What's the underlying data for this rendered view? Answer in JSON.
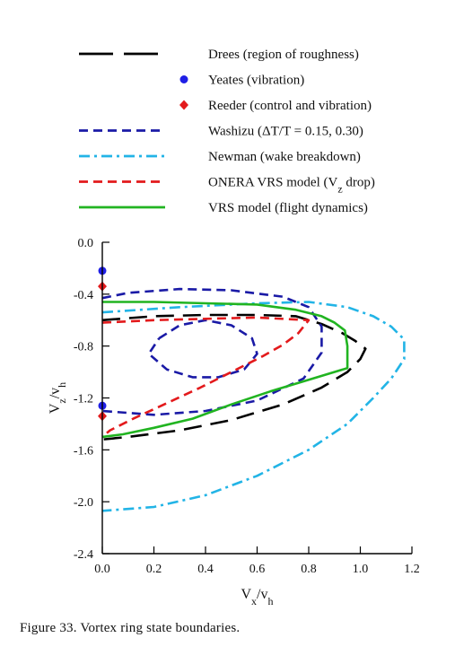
{
  "caption": "Figure 33. Vortex ring state boundaries.",
  "chart_data": {
    "type": "line",
    "xlabel": "Vx/vh",
    "ylabel": "Vz/vh",
    "xlim": [
      0,
      1.2
    ],
    "ylim": [
      -2.4,
      0
    ],
    "grid": false,
    "legend_position": "top",
    "x_ticks": [
      {
        "v": 0,
        "label": "0.0"
      },
      {
        "v": 0.2,
        "label": "0.2"
      },
      {
        "v": 0.4,
        "label": "0.4"
      },
      {
        "v": 0.6,
        "label": "0.6"
      },
      {
        "v": 0.8,
        "label": "0.8"
      },
      {
        "v": 1.0,
        "label": "1.0"
      },
      {
        "v": 1.2,
        "label": "1.2"
      }
    ],
    "y_ticks": [
      {
        "v": 0,
        "label": "0.0"
      },
      {
        "v": -0.4,
        "label": "-0.4"
      },
      {
        "v": -0.8,
        "label": "-0.8"
      },
      {
        "v": -1.2,
        "label": "-1.2"
      },
      {
        "v": -1.6,
        "label": "-1.6"
      },
      {
        "v": -2.0,
        "label": "-2.0"
      },
      {
        "v": -2.4,
        "label": "-2.4"
      }
    ],
    "series": [
      {
        "name": "Drees (region of roughness)",
        "color": "#000000",
        "style": "longdash",
        "kind": "line",
        "points": [
          [
            0,
            -0.6
          ],
          [
            0.2,
            -0.57
          ],
          [
            0.4,
            -0.56
          ],
          [
            0.6,
            -0.56
          ],
          [
            0.75,
            -0.57
          ],
          [
            0.85,
            -0.63
          ],
          [
            0.93,
            -0.7
          ],
          [
            0.98,
            -0.76
          ],
          [
            1.02,
            -0.82
          ],
          [
            1.0,
            -0.9
          ],
          [
            0.95,
            -1.0
          ],
          [
            0.85,
            -1.12
          ],
          [
            0.7,
            -1.25
          ],
          [
            0.5,
            -1.37
          ],
          [
            0.3,
            -1.45
          ],
          [
            0.1,
            -1.5
          ],
          [
            0,
            -1.52
          ]
        ]
      },
      {
        "name": "Yeates (vibration)",
        "color": "#1f1fe6",
        "style": "circle",
        "kind": "marker",
        "points": [
          [
            0,
            -0.22
          ],
          [
            0,
            -1.26
          ]
        ]
      },
      {
        "name": "Reeder (control and vibration)",
        "color": "#e31a1c",
        "style": "diamond",
        "kind": "marker",
        "points": [
          [
            0,
            -0.34
          ],
          [
            0,
            -1.34
          ]
        ]
      },
      {
        "name": "Washizu (ΔT/T = 0.15, 0.30)",
        "color": "#1a1aa6",
        "style": "dash",
        "kind": "line",
        "points": [
          [
            0,
            -0.43
          ],
          [
            0.1,
            -0.39
          ],
          [
            0.3,
            -0.36
          ],
          [
            0.5,
            -0.37
          ],
          [
            0.7,
            -0.42
          ],
          [
            0.8,
            -0.5
          ],
          [
            0.85,
            -0.65
          ],
          [
            0.85,
            -0.85
          ],
          [
            0.78,
            -1.05
          ],
          [
            0.6,
            -1.22
          ],
          [
            0.4,
            -1.3
          ],
          [
            0.2,
            -1.33
          ],
          [
            0,
            -1.3
          ]
        ]
      },
      {
        "name": "Washizu (ΔT/T = 0.15, 0.30) inner",
        "color": "#1a1aa6",
        "style": "dash",
        "kind": "line",
        "points": [
          [
            0.22,
            -0.74
          ],
          [
            0.3,
            -0.64
          ],
          [
            0.4,
            -0.6
          ],
          [
            0.5,
            -0.64
          ],
          [
            0.58,
            -0.74
          ],
          [
            0.6,
            -0.86
          ],
          [
            0.55,
            -0.98
          ],
          [
            0.45,
            -1.04
          ],
          [
            0.35,
            -1.04
          ],
          [
            0.25,
            -0.98
          ],
          [
            0.18,
            -0.86
          ],
          [
            0.22,
            -0.74
          ]
        ]
      },
      {
        "name": "Newman (wake breakdown)",
        "color": "#22b4e6",
        "style": "dashdot",
        "kind": "line",
        "points": [
          [
            0,
            -0.54
          ],
          [
            0.3,
            -0.5
          ],
          [
            0.6,
            -0.47
          ],
          [
            0.8,
            -0.46
          ],
          [
            0.95,
            -0.5
          ],
          [
            1.05,
            -0.57
          ],
          [
            1.12,
            -0.65
          ],
          [
            1.17,
            -0.75
          ],
          [
            1.17,
            -0.9
          ],
          [
            1.12,
            -1.05
          ],
          [
            1.05,
            -1.2
          ],
          [
            0.95,
            -1.4
          ],
          [
            0.8,
            -1.6
          ],
          [
            0.6,
            -1.8
          ],
          [
            0.4,
            -1.95
          ],
          [
            0.2,
            -2.04
          ],
          [
            0,
            -2.07
          ]
        ]
      },
      {
        "name": "ONERA VRS model (Vz drop)",
        "color": "#e31a1c",
        "style": "dash",
        "kind": "line",
        "points": [
          [
            0,
            -0.62
          ],
          [
            0.2,
            -0.6
          ],
          [
            0.4,
            -0.59
          ],
          [
            0.6,
            -0.58
          ],
          [
            0.8,
            -0.6
          ],
          [
            0.76,
            -0.7
          ],
          [
            0.7,
            -0.79
          ],
          [
            0.62,
            -0.88
          ],
          [
            0.5,
            -1.0
          ],
          [
            0.38,
            -1.12
          ],
          [
            0.25,
            -1.24
          ],
          [
            0.12,
            -1.36
          ],
          [
            0.03,
            -1.45
          ],
          [
            0,
            -1.5
          ]
        ]
      },
      {
        "name": "VRS model (flight dynamics)",
        "color": "#21b421",
        "style": "solid",
        "kind": "line",
        "points": [
          [
            0,
            -0.46
          ],
          [
            0.2,
            -0.46
          ],
          [
            0.4,
            -0.47
          ],
          [
            0.6,
            -0.48
          ],
          [
            0.75,
            -0.52
          ],
          [
            0.85,
            -0.57
          ],
          [
            0.9,
            -0.62
          ],
          [
            0.94,
            -0.68
          ],
          [
            0.95,
            -0.8
          ],
          [
            0.95,
            -0.97
          ],
          [
            0.8,
            -1.06
          ],
          [
            0.65,
            -1.15
          ],
          [
            0.5,
            -1.25
          ],
          [
            0.35,
            -1.36
          ],
          [
            0.2,
            -1.43
          ],
          [
            0.08,
            -1.48
          ],
          [
            0,
            -1.5
          ]
        ]
      }
    ]
  },
  "legend": [
    {
      "name": "Drees (region of roughness)",
      "html": "Drees (region of roughness)",
      "style": "longdash",
      "color": "#000000"
    },
    {
      "name": "Yeates (vibration)",
      "html": "Yeates (vibration)",
      "style": "circle",
      "color": "#1f1fe6"
    },
    {
      "name": "Reeder (control and vibration)",
      "html": "Reeder (control and vibration)",
      "style": "diamond",
      "color": "#e31a1c"
    },
    {
      "name": "Washizu (ΔT/T = 0.15, 0.30)",
      "html": "Washizu (ΔT/T = 0.15, 0.30)",
      "style": "dash",
      "color": "#1a1aa6"
    },
    {
      "name": "Newman (wake breakdown)",
      "html": "Newman (wake breakdown)",
      "style": "dashdot",
      "color": "#22b4e6"
    },
    {
      "name": "ONERA VRS model (Vz drop)",
      "html": "ONERA VRS model (V|z| drop)",
      "style": "dash",
      "color": "#e31a1c"
    },
    {
      "name": "VRS model (flight dynamics)",
      "html": "VRS model (flight dynamics)",
      "style": "solid",
      "color": "#21b421"
    }
  ],
  "axis_text": {
    "x_main": "V",
    "x_sub": "x",
    "x_slash": "/v",
    "x_sub2": "h",
    "y_main": "V",
    "y_sub": "z",
    "y_slash": "/v",
    "y_sub2": "h"
  }
}
